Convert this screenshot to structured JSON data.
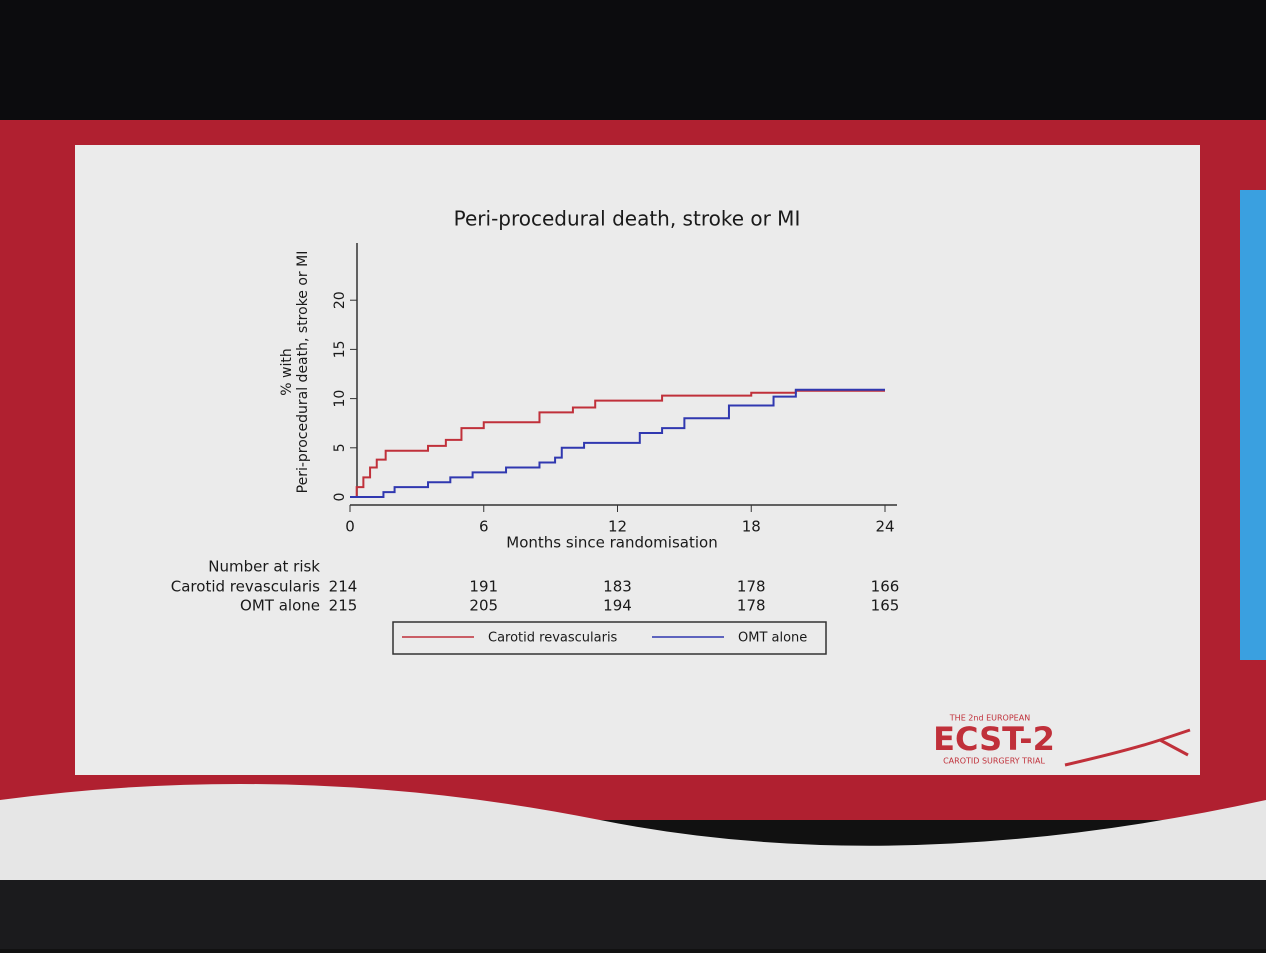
{
  "chart_data": {
    "type": "line",
    "title": "Peri-procedural death, stroke or MI",
    "ylabel": [
      "% with",
      "Peri-procedural death, stroke or MI"
    ],
    "xlabel": "Months since randomisation",
    "xlim": [
      0,
      24
    ],
    "xticks": [
      0,
      6,
      12,
      18,
      24
    ],
    "ylim": [
      0,
      25
    ],
    "yticks": [
      0,
      5,
      10,
      15,
      20
    ],
    "series": [
      {
        "name": "Carotid revascularis",
        "color": "#c0303a",
        "x": [
          0,
          0.3,
          0.3,
          0.6,
          0.6,
          0.9,
          0.9,
          1.2,
          1.2,
          1.6,
          1.6,
          3.5,
          3.5,
          4.3,
          4.3,
          5,
          5,
          6,
          6,
          8.5,
          8.5,
          10,
          10,
          11,
          11,
          14,
          14,
          18,
          18,
          20,
          20,
          24
        ],
        "values": [
          0,
          0,
          1,
          1,
          2,
          2,
          3,
          3,
          3.8,
          3.8,
          4.7,
          4.7,
          5.2,
          5.2,
          5.8,
          5.8,
          7,
          7,
          7.6,
          7.6,
          8.6,
          8.6,
          9.1,
          9.1,
          9.8,
          9.8,
          10.3,
          10.3,
          10.6,
          10.6,
          10.8,
          10.8
        ]
      },
      {
        "name": "OMT alone",
        "color": "#3038b0",
        "x": [
          0,
          1.5,
          1.5,
          2,
          2,
          3.5,
          3.5,
          4.5,
          4.5,
          5.5,
          5.5,
          7,
          7,
          8.5,
          8.5,
          9.2,
          9.2,
          9.5,
          9.5,
          10.5,
          10.5,
          13,
          13,
          14,
          14,
          15,
          15,
          17,
          17,
          19,
          19,
          20,
          20,
          24
        ],
        "values": [
          0,
          0,
          0.5,
          0.5,
          1,
          1,
          1.5,
          1.5,
          2,
          2,
          2.5,
          2.5,
          3,
          3,
          3.5,
          3.5,
          4,
          4,
          5,
          5,
          5.5,
          5.5,
          6.5,
          6.5,
          7,
          7,
          8,
          8,
          9.3,
          9.3,
          10.2,
          10.2,
          10.9,
          10.9
        ]
      }
    ],
    "risk_table": {
      "title": "Number at risk",
      "rows": [
        {
          "label": "Carotid revascularis",
          "values": [
            214,
            191,
            183,
            178,
            166
          ]
        },
        {
          "label": "OMT alone",
          "values": [
            215,
            205,
            194,
            178,
            165
          ]
        }
      ]
    }
  },
  "logo": {
    "top": "THE 2nd EUROPEAN",
    "name": "ECST-2",
    "bottom": "CAROTID SURGERY TRIAL"
  }
}
